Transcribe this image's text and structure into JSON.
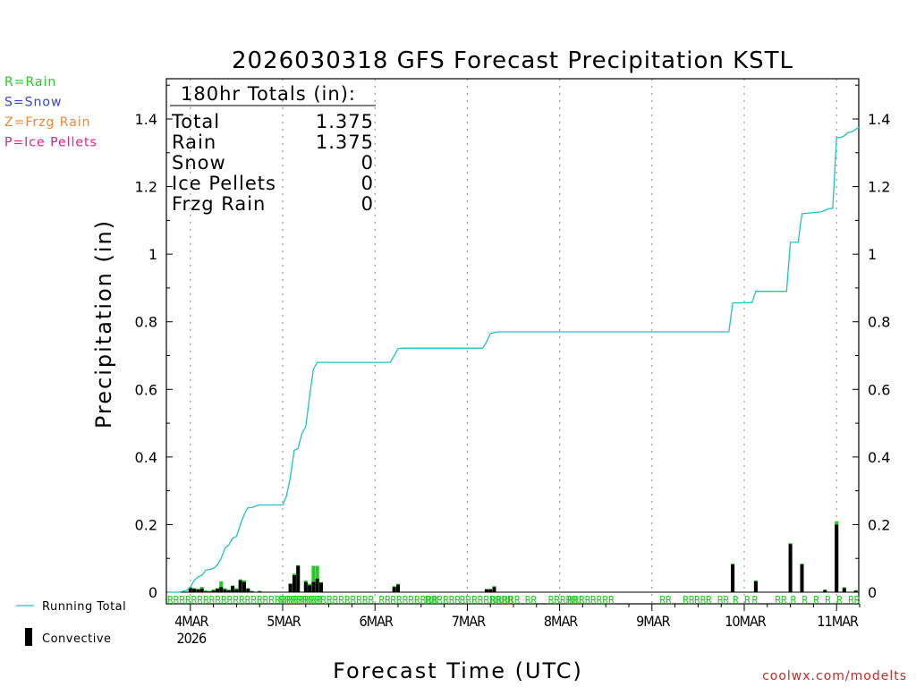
{
  "chart_data": {
    "type": "bar",
    "title": "2026030318 GFS Forecast Precipitation KSTL",
    "xlabel": "Forecast Time (UTC)",
    "ylabel": "Precipitation (in)",
    "ylim": [
      0,
      1.5
    ],
    "yticks": [
      "0",
      "0.2",
      "0.4",
      "0.6",
      "0.8",
      "1",
      "1.2",
      "1.4"
    ],
    "ytick_values": [
      0,
      0.2,
      0.4,
      0.6,
      0.8,
      1.0,
      1.2,
      1.4
    ],
    "xlim_hours": [
      0,
      180
    ],
    "date_labels": [
      {
        "hour": 6,
        "label": "4MAR"
      },
      {
        "hour": 30,
        "label": "5MAR"
      },
      {
        "hour": 54,
        "label": "6MAR"
      },
      {
        "hour": 78,
        "label": "7MAR"
      },
      {
        "hour": 102,
        "label": "8MAR"
      },
      {
        "hour": 126,
        "label": "9MAR"
      },
      {
        "hour": 150,
        "label": "10MAR"
      },
      {
        "hour": 174,
        "label": "11MAR"
      }
    ],
    "year_label": "2026",
    "legend_types": [
      {
        "label": "R=Rain",
        "color": "#22cc22"
      },
      {
        "label": "S=Snow",
        "color": "#3344dd"
      },
      {
        "label": "Z=Frzg Rain",
        "color": "#ee8833"
      },
      {
        "label": "P=Ice Pellets",
        "color": "#dd2288"
      }
    ],
    "legend_series": [
      {
        "label": "Running Total",
        "color": "#1cc3c8"
      },
      {
        "label": "Convective",
        "color": "#000000"
      }
    ],
    "totals_box": {
      "header": "180hr Totals (in):",
      "rows": [
        {
          "label": "Total",
          "value": "1.375"
        },
        {
          "label": "Rain",
          "value": "1.375"
        },
        {
          "label": "Snow",
          "value": "0"
        },
        {
          "label": "Ice Pellets",
          "value": "0"
        },
        {
          "label": "Frzg Rain",
          "value": "0"
        }
      ]
    },
    "running_total": [
      [
        0,
        0
      ],
      [
        3,
        0
      ],
      [
        5,
        0.005
      ],
      [
        6,
        0.015
      ],
      [
        7,
        0.035
      ],
      [
        8,
        0.045
      ],
      [
        9,
        0.05
      ],
      [
        10,
        0.065
      ],
      [
        12,
        0.07
      ],
      [
        13,
        0.08
      ],
      [
        14,
        0.1
      ],
      [
        15,
        0.13
      ],
      [
        16,
        0.14
      ],
      [
        17,
        0.16
      ],
      [
        18,
        0.165
      ],
      [
        19,
        0.2
      ],
      [
        20,
        0.23
      ],
      [
        21,
        0.25
      ],
      [
        22,
        0.25
      ],
      [
        23,
        0.255
      ],
      [
        24,
        0.258
      ],
      [
        30,
        0.258
      ],
      [
        31,
        0.285
      ],
      [
        32,
        0.34
      ],
      [
        33,
        0.42
      ],
      [
        34,
        0.425
      ],
      [
        35,
        0.47
      ],
      [
        36,
        0.49
      ],
      [
        37,
        0.58
      ],
      [
        38,
        0.66
      ],
      [
        39,
        0.68
      ],
      [
        40,
        0.68
      ],
      [
        47,
        0.68
      ],
      [
        54,
        0.68
      ],
      [
        58,
        0.68
      ],
      [
        59,
        0.7
      ],
      [
        60,
        0.72
      ],
      [
        61,
        0.722
      ],
      [
        72,
        0.722
      ],
      [
        82,
        0.722
      ],
      [
        83,
        0.74
      ],
      [
        84,
        0.765
      ],
      [
        85,
        0.768
      ],
      [
        86,
        0.77
      ],
      [
        120,
        0.77
      ],
      [
        146,
        0.77
      ],
      [
        147,
        0.855
      ],
      [
        152,
        0.857
      ],
      [
        153,
        0.89
      ],
      [
        161,
        0.89
      ],
      [
        162,
        1.035
      ],
      [
        164,
        1.035
      ],
      [
        165,
        1.12
      ],
      [
        170,
        1.125
      ],
      [
        171,
        1.13
      ],
      [
        172,
        1.135
      ],
      [
        173,
        1.135
      ],
      [
        174,
        1.345
      ],
      [
        175,
        1.345
      ],
      [
        176,
        1.35
      ],
      [
        177,
        1.36
      ],
      [
        178,
        1.362
      ],
      [
        179,
        1.37
      ],
      [
        180,
        1.375
      ]
    ],
    "bars": [
      {
        "hour": 6,
        "value": 0.015,
        "conv": 0.012
      },
      {
        "hour": 7,
        "value": 0.012,
        "conv": 0.01
      },
      {
        "hour": 8,
        "value": 0.01,
        "conv": 0.008
      },
      {
        "hour": 9,
        "value": 0.016,
        "conv": 0.01
      },
      {
        "hour": 10,
        "value": 0.005,
        "conv": 0.002
      },
      {
        "hour": 11,
        "value": 0.004,
        "conv": 0.002
      },
      {
        "hour": 12,
        "value": 0.008,
        "conv": 0.005
      },
      {
        "hour": 13,
        "value": 0.012,
        "conv": 0.01
      },
      {
        "hour": 14,
        "value": 0.032,
        "conv": 0.015
      },
      {
        "hour": 15,
        "value": 0.012,
        "conv": 0.008
      },
      {
        "hour": 16,
        "value": 0.008,
        "conv": 0.005
      },
      {
        "hour": 17,
        "value": 0.02,
        "conv": 0.018
      },
      {
        "hour": 18,
        "value": 0.012,
        "conv": 0.008
      },
      {
        "hour": 19,
        "value": 0.038,
        "conv": 0.035
      },
      {
        "hour": 20,
        "value": 0.035,
        "conv": 0.03
      },
      {
        "hour": 21,
        "value": 0.012,
        "conv": 0.01
      },
      {
        "hour": 22,
        "value": 0.004,
        "conv": 0.002
      },
      {
        "hour": 24,
        "value": 0.004,
        "conv": 0.002
      },
      {
        "hour": 32,
        "value": 0.025,
        "conv": 0.025
      },
      {
        "hour": 33,
        "value": 0.055,
        "conv": 0.05
      },
      {
        "hour": 34,
        "value": 0.08,
        "conv": 0.078
      },
      {
        "hour": 36,
        "value": 0.035,
        "conv": 0.03
      },
      {
        "hour": 37,
        "value": 0.025,
        "conv": 0.02
      },
      {
        "hour": 38,
        "value": 0.078,
        "conv": 0.03
      },
      {
        "hour": 39,
        "value": 0.078,
        "conv": 0.04
      },
      {
        "hour": 40,
        "value": 0.03,
        "conv": 0.028
      },
      {
        "hour": 59,
        "value": 0.018,
        "conv": 0.015
      },
      {
        "hour": 60,
        "value": 0.025,
        "conv": 0.022
      },
      {
        "hour": 83,
        "value": 0.01,
        "conv": 0.008
      },
      {
        "hour": 84,
        "value": 0.01,
        "conv": 0.008
      },
      {
        "hour": 85,
        "value": 0.018,
        "conv": 0.015
      },
      {
        "hour": 147,
        "value": 0.085,
        "conv": 0.082
      },
      {
        "hour": 153,
        "value": 0.035,
        "conv": 0.032
      },
      {
        "hour": 162,
        "value": 0.145,
        "conv": 0.142
      },
      {
        "hour": 165,
        "value": 0.085,
        "conv": 0.082
      },
      {
        "hour": 171,
        "value": 0.008,
        "conv": 0.006
      },
      {
        "hour": 174,
        "value": 0.21,
        "conv": 0.2
      },
      {
        "hour": 176,
        "value": 0.015,
        "conv": 0.012
      },
      {
        "hour": 179,
        "value": 0.006,
        "conv": 0.004
      }
    ],
    "type_labels": [
      {
        "hour": 0,
        "text": "RRRRRRRRRRRRRRRRRRRRRRRRRR"
      },
      {
        "hour": 29,
        "text": "RRRRRRRRRRRRRRRR"
      },
      {
        "hour": 55,
        "text": "RR"
      },
      {
        "hour": 58,
        "text": "RRRRRRRR"
      },
      {
        "hour": 67,
        "text": "RRRRRR"
      },
      {
        "hour": 76,
        "text": "RRRRRRRRR"
      },
      {
        "hour": 84,
        "text": "RRRRR"
      },
      {
        "hour": 93,
        "text": "RR"
      },
      {
        "hour": 99,
        "text": "RRRRR"
      },
      {
        "hour": 104,
        "text": "RR"
      },
      {
        "hour": 107,
        "text": "RR"
      },
      {
        "hour": 110,
        "text": "RRRR"
      },
      {
        "hour": 128,
        "text": "RR"
      },
      {
        "hour": 134,
        "text": "RR"
      },
      {
        "hour": 137,
        "text": "RR"
      },
      {
        "hour": 140,
        "text": "R"
      },
      {
        "hour": 143,
        "text": "RR"
      },
      {
        "hour": 147,
        "text": "R"
      },
      {
        "hour": 150,
        "text": "R"
      },
      {
        "hour": 152,
        "text": "R"
      },
      {
        "hour": 158,
        "text": "RR"
      },
      {
        "hour": 162,
        "text": "R"
      },
      {
        "hour": 165,
        "text": "R"
      },
      {
        "hour": 168,
        "text": "R"
      },
      {
        "hour": 171,
        "text": "R"
      },
      {
        "hour": 174,
        "text": "R"
      },
      {
        "hour": 177,
        "text": "RR"
      }
    ],
    "watermark": "coolwx.com/modelts"
  }
}
